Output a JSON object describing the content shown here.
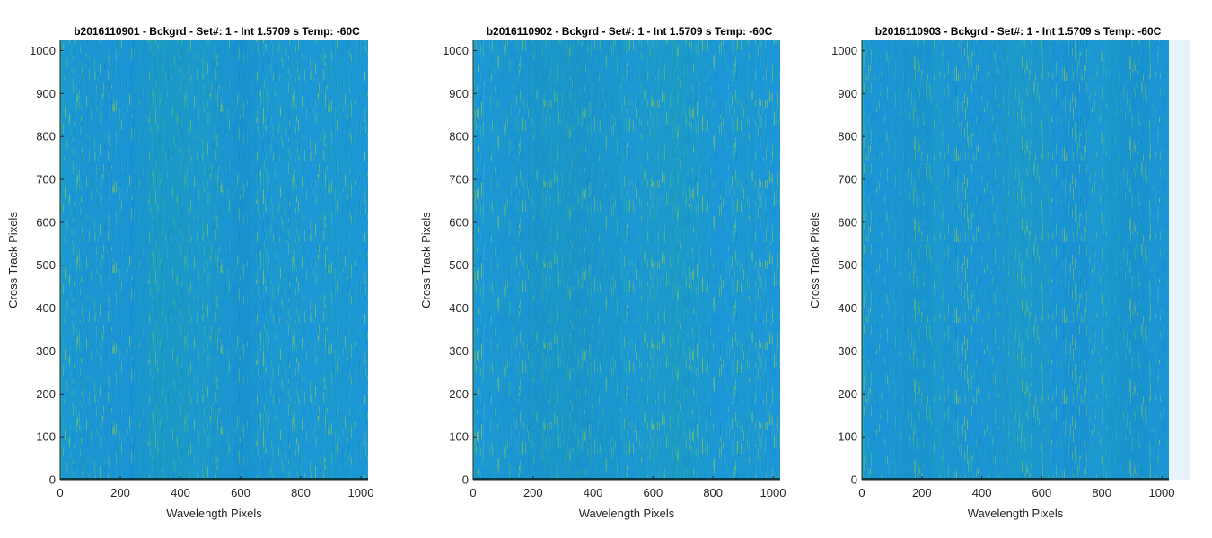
{
  "figure": {
    "background": "#ffffff",
    "colormap": "parula",
    "colors": {
      "base_blue": "#1b96d6",
      "teal": "#20a9b3",
      "yellow_green": "#8cc45c",
      "axis": "#262626"
    }
  },
  "chart_data": [
    {
      "type": "heatmap",
      "title": "b2016110901 - Bckgrd - Set#: 1 - Int 1.5709 s Temp: -60C",
      "xlabel": "Wavelength Pixels",
      "ylabel": "Cross Track Pixels",
      "xlim": [
        0,
        1024
      ],
      "ylim": [
        0,
        1024
      ],
      "xticks": [
        0,
        200,
        400,
        600,
        800,
        1000
      ],
      "yticks": [
        0,
        100,
        200,
        300,
        400,
        500,
        600,
        700,
        800,
        900,
        1000
      ],
      "grid": false,
      "legend": "none",
      "dominant_color": "#1b96d6"
    },
    {
      "type": "heatmap",
      "title": "b2016110902 - Bckgrd - Set#: 1 - Int 1.5709 s Temp: -60C",
      "xlabel": "Wavelength Pixels",
      "ylabel": "Cross Track Pixels",
      "xlim": [
        0,
        1024
      ],
      "ylim": [
        0,
        1024
      ],
      "xticks": [
        0,
        200,
        400,
        600,
        800,
        1000
      ],
      "yticks": [
        0,
        100,
        200,
        300,
        400,
        500,
        600,
        700,
        800,
        900,
        1000
      ],
      "grid": false,
      "legend": "none",
      "dominant_color": "#1b96d6"
    },
    {
      "type": "heatmap",
      "title": "b2016110903 - Bckgrd - Set#: 1 - Int 1.5709 s Temp: -60C",
      "xlabel": "Wavelength Pixels",
      "ylabel": "Cross Track Pixels",
      "xlim": [
        0,
        1024
      ],
      "ylim": [
        0,
        1024
      ],
      "xticks": [
        0,
        200,
        400,
        600,
        800,
        1000
      ],
      "yticks": [
        0,
        100,
        200,
        300,
        400,
        500,
        600,
        700,
        800,
        900,
        1000
      ],
      "grid": false,
      "legend": "none",
      "dominant_color": "#1b96d6"
    }
  ]
}
